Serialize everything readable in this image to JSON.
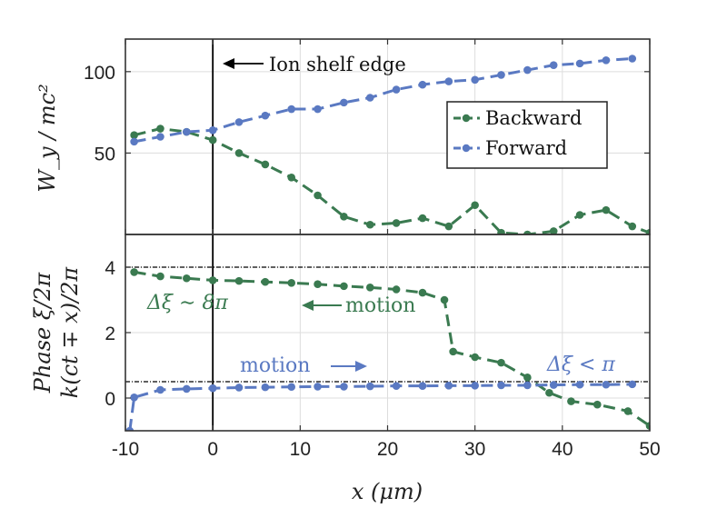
{
  "chart_data": {
    "type": "line",
    "x_axis": {
      "label": "x (μm)",
      "range": [
        -10,
        50
      ],
      "ticks": [
        -10,
        0,
        10,
        20,
        30,
        40,
        50
      ],
      "tick_labels": [
        "-10",
        "0",
        "10",
        "20",
        "30",
        "40",
        "50"
      ]
    },
    "colors": {
      "backward": "#3a7a50",
      "forward": "#5a79c2",
      "vline": "#000000",
      "grid": "#dddddd"
    },
    "top_panel": {
      "ylabel": "W_y / mc²",
      "ylim": [
        0,
        120
      ],
      "yticks": [
        50,
        100
      ],
      "ytick_labels": [
        "50",
        "100"
      ],
      "series": [
        {
          "name": "Backward",
          "x": [
            -9,
            -6,
            -3,
            0,
            3,
            6,
            9,
            12,
            15,
            18,
            21,
            24,
            27,
            30,
            33,
            36,
            39,
            42,
            45,
            48,
            50
          ],
          "y": [
            61,
            65,
            63,
            58,
            50,
            43,
            35,
            24,
            11,
            6,
            7,
            10,
            5,
            18,
            1,
            0,
            2,
            12,
            15,
            5,
            1
          ]
        },
        {
          "name": "Forward",
          "x": [
            -9,
            -6,
            -3,
            0,
            3,
            6,
            9,
            12,
            15,
            18,
            21,
            24,
            27,
            30,
            33,
            36,
            39,
            42,
            45,
            48
          ],
          "y": [
            57,
            60,
            63,
            64,
            69,
            73,
            77,
            77,
            81,
            84,
            89,
            92,
            94,
            95,
            98,
            101,
            104,
            105,
            107,
            108
          ]
        }
      ],
      "annotation": "Ion shelf edge",
      "legend": {
        "position": "right",
        "entries": [
          "Backward",
          "Forward"
        ]
      }
    },
    "bottom_panel": {
      "ylabel_line1": "Phase ξ/2π",
      "ylabel_line2": "k(ct ∓ x)/2π",
      "ylim": [
        -1,
        5
      ],
      "yticks": [
        0,
        2,
        4
      ],
      "ytick_labels": [
        "0",
        "2",
        "4"
      ],
      "hlines": [
        4,
        0.5
      ],
      "series": [
        {
          "name": "Backward",
          "x": [
            -9,
            -6,
            -3,
            0,
            3,
            6,
            9,
            12,
            15,
            18,
            21,
            24,
            26.5,
            27.5,
            30,
            33,
            36,
            38.5,
            41,
            44,
            47.5,
            50
          ],
          "y": [
            3.85,
            3.72,
            3.66,
            3.6,
            3.58,
            3.55,
            3.52,
            3.48,
            3.42,
            3.38,
            3.32,
            3.22,
            3.0,
            1.42,
            1.25,
            1.08,
            0.63,
            0.16,
            -0.1,
            -0.2,
            -0.4,
            -0.85
          ]
        },
        {
          "name": "Forward",
          "x": [
            -9.5,
            -9,
            -6,
            -3,
            0,
            3,
            6,
            9,
            12,
            15,
            18,
            21,
            24,
            27,
            30,
            33,
            36,
            39,
            42,
            45,
            48
          ],
          "y": [
            -1,
            0.02,
            0.25,
            0.28,
            0.3,
            0.32,
            0.33,
            0.34,
            0.35,
            0.35,
            0.36,
            0.37,
            0.37,
            0.38,
            0.38,
            0.39,
            0.39,
            0.4,
            0.41,
            0.41,
            0.42
          ]
        }
      ],
      "annotations": {
        "delta_backward": "Δξ ∼ 8π",
        "motion_backward": "motion",
        "motion_forward": "motion",
        "delta_forward": "Δξ < π"
      }
    }
  }
}
